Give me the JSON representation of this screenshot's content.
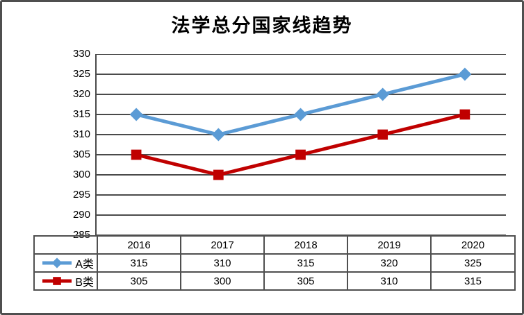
{
  "title": "法学总分国家线趋势",
  "colors": {
    "series_a": "#5B9BD5",
    "series_b": "#C00000",
    "grid": "#4A4A4A",
    "axis": "#4A4A4A",
    "table_border": "#4F4F4F",
    "frame": "#4F4F4F",
    "text": "#000000",
    "background": "#FFFFFF"
  },
  "chart_data": {
    "type": "line",
    "title": "法学总分国家线趋势",
    "categories": [
      "2016",
      "2017",
      "2018",
      "2019",
      "2020"
    ],
    "series": [
      {
        "name": "A类",
        "marker": "diamond",
        "color": "#5B9BD5",
        "values": [
          315,
          310,
          315,
          320,
          325
        ]
      },
      {
        "name": "B类",
        "marker": "square",
        "color": "#C00000",
        "values": [
          305,
          300,
          305,
          310,
          315
        ]
      }
    ],
    "xlabel": "",
    "ylabel": "",
    "ylim": [
      285,
      330
    ],
    "ytick_step": 5,
    "yticks": [
      330,
      325,
      320,
      315,
      310,
      305,
      300,
      295,
      290,
      285
    ],
    "grid": "horizontal",
    "legend_position": "left-of-data-table",
    "data_table_shown": true
  }
}
